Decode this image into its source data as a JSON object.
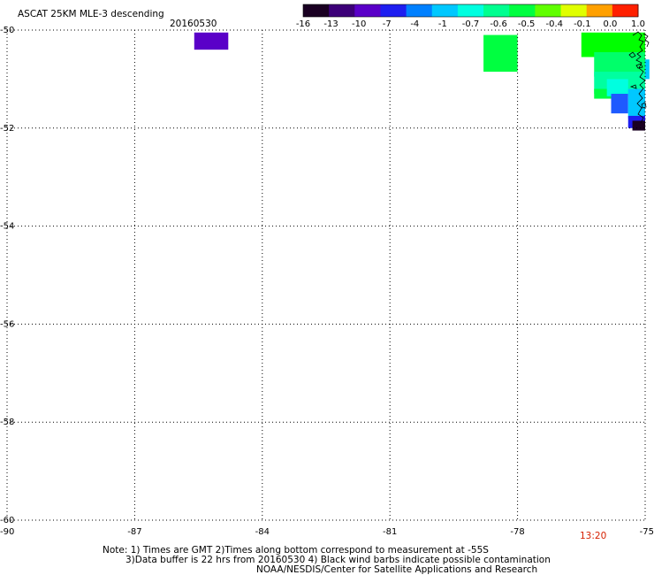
{
  "header": {
    "title": "ASCAT 25KM MLE-3 descending",
    "date": "20160530"
  },
  "colorbar": {
    "tick_labels": [
      "-16",
      "-13",
      "-10",
      "-7",
      "-4",
      "-1",
      "-0.7",
      "-0.6",
      "-0.5",
      "-0.4",
      "-0.1",
      "0.0",
      "1.0"
    ],
    "colors": [
      "#1a0022",
      "#3c0078",
      "#5a00c8",
      "#1e1ef0",
      "#0080ff",
      "#00c8ff",
      "#00ffe0",
      "#00ff90",
      "#00ff40",
      "#60ff00",
      "#e0ff00",
      "#ffa000",
      "#ff2000"
    ]
  },
  "axes": {
    "x_ticks": [
      "-90",
      "-87",
      "-84",
      "-81",
      "-78",
      "-75"
    ],
    "y_ticks": [
      "-50",
      "-52",
      "-54",
      "-56",
      "-58",
      "-60"
    ],
    "x_range": [
      -90,
      -75
    ],
    "y_range": [
      -50,
      -60
    ]
  },
  "time_label": "13:20",
  "notes": {
    "line1": "Note: 1) Times are GMT 2)Times along bottom correspond to measurement at -55S",
    "line2": "3)Data buffer is 22 hrs from 20160530 4) Black wind barbs indicate possible contamination",
    "line3": "NOAA/NESDIS/Center for Satellite Applications and Research"
  },
  "chart_data": {
    "type": "heatmap",
    "x_unit": "longitude (deg)",
    "y_unit": "latitude (deg)",
    "cells": [
      {
        "lon0": -85.6,
        "lon1": -84.8,
        "lat0": -50.05,
        "lat1": -50.4,
        "color": "#5a00c8"
      },
      {
        "lon0": -78.8,
        "lon1": -78.0,
        "lat0": -50.1,
        "lat1": -50.85,
        "color": "#00ff40"
      },
      {
        "lon0": -76.5,
        "lon1": -75.0,
        "lat0": -50.05,
        "lat1": -50.55,
        "color": "#00ff00"
      },
      {
        "lon0": -76.2,
        "lon1": -75.0,
        "lat0": -50.45,
        "lat1": -50.95,
        "color": "#00ff6a"
      },
      {
        "lon0": -76.2,
        "lon1": -75.0,
        "lat0": -50.85,
        "lat1": -51.3,
        "color": "#00ffa0"
      },
      {
        "lon0": -76.2,
        "lon1": -75.8,
        "lat0": -51.2,
        "lat1": -51.4,
        "color": "#00ff40"
      },
      {
        "lon0": -75.9,
        "lon1": -75.4,
        "lat0": -51.0,
        "lat1": -51.35,
        "color": "#00ffe0"
      },
      {
        "lon0": -75.8,
        "lon1": -75.4,
        "lat0": -51.3,
        "lat1": -51.7,
        "color": "#1e5aff"
      },
      {
        "lon0": -75.4,
        "lon1": -75.0,
        "lat0": -51.2,
        "lat1": -51.8,
        "color": "#00c8ff"
      },
      {
        "lon0": -75.4,
        "lon1": -75.0,
        "lat0": -51.75,
        "lat1": -52.0,
        "color": "#1e1ef0"
      },
      {
        "lon0": -75.3,
        "lon1": -75.0,
        "lat0": -51.85,
        "lat1": -52.05,
        "color": "#1a0022"
      },
      {
        "lon0": -75.0,
        "lon1": -74.9,
        "lat0": -50.6,
        "lat1": -51.0,
        "color": "#00c8ff"
      }
    ]
  }
}
